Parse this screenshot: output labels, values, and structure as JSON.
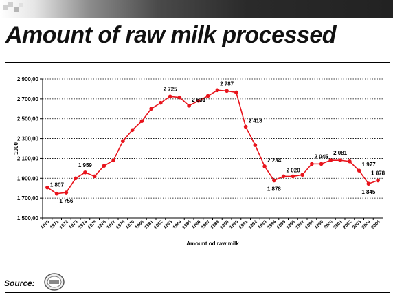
{
  "title": "Amount of raw milk processed",
  "source_label": "Source:",
  "logo_icon": "company-logo-icon",
  "colors": {
    "series": "#e8141c",
    "text": "#000000"
  },
  "chart_data": {
    "type": "line",
    "xlabel": "Amount od raw milk",
    "ylabel": "1000",
    "ylim": [
      1500,
      2900
    ],
    "yticks": [
      1500,
      1700,
      1900,
      2100,
      2300,
      2500,
      2700,
      2900
    ],
    "ytick_labels": [
      "1 500,00",
      "1 700,00",
      "1 900,00",
      "2 100,00",
      "2 300,00",
      "2 500,00",
      "2 700,00",
      "2 900,00"
    ],
    "grid": "horizontal-dotted",
    "categories": [
      "1970",
      "1971",
      "1972",
      "1973",
      "1974",
      "1975",
      "1976",
      "1977",
      "1978",
      "1979",
      "1980",
      "1981",
      "1982",
      "1983",
      "1984",
      "1985",
      "1986",
      "1987",
      "1988",
      "1989",
      "1990",
      "1991",
      "1992",
      "1993",
      "1994",
      "1995",
      "1996",
      "1997",
      "1998",
      "1999",
      "2000",
      "2001",
      "2002",
      "2003",
      "2004",
      "2005"
    ],
    "series": [
      {
        "values": [
          1807,
          1745,
          1756,
          1900,
          1959,
          1920,
          2025,
          2080,
          2275,
          2385,
          2475,
          2600,
          2660,
          2725,
          2715,
          2631,
          2680,
          2730,
          2787,
          2780,
          2765,
          2418,
          2234,
          2020,
          1878,
          1920,
          1920,
          1935,
          2045,
          2045,
          2081,
          2081,
          2070,
          1977,
          1845,
          1878
        ]
      }
    ],
    "data_labels": [
      {
        "x": "1970",
        "text": "1 807",
        "pos": "right"
      },
      {
        "x": "1972",
        "text": "1 756",
        "pos": "below"
      },
      {
        "x": "1974",
        "text": "1 959",
        "pos": "above"
      },
      {
        "x": "1983",
        "text": "2 725",
        "pos": "above"
      },
      {
        "x": "1985",
        "text": "2 631",
        "pos": "upright"
      },
      {
        "x": "1989",
        "text": "2 787",
        "pos": "above"
      },
      {
        "x": "1991",
        "text": "2 418",
        "pos": "upright"
      },
      {
        "x": "1993",
        "text": "2 234",
        "pos": "upright"
      },
      {
        "x": "1995",
        "text": "2 020",
        "pos": "upright"
      },
      {
        "x": "1994",
        "text": "1 878",
        "pos": "below"
      },
      {
        "x": "1999",
        "text": "2 045",
        "pos": "above"
      },
      {
        "x": "2001",
        "text": "2 081",
        "pos": "above"
      },
      {
        "x": "2003",
        "text": "1 977",
        "pos": "upright"
      },
      {
        "x": "2004",
        "text": "1 845",
        "pos": "below"
      },
      {
        "x": "2005",
        "text": "1 878",
        "pos": "above"
      }
    ]
  }
}
